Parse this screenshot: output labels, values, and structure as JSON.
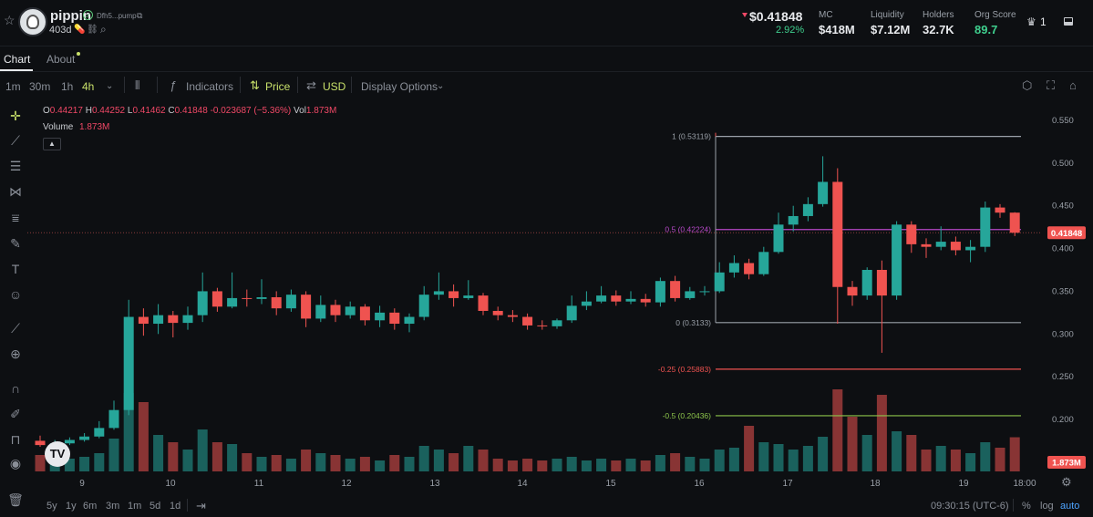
{
  "header": {
    "token_name": "pippin",
    "address": "Dfh5...pump",
    "age": "403d",
    "price": "$0.41848",
    "price_change": "2.92%",
    "stats": [
      {
        "label": "MC",
        "value": "$418M",
        "color": "#e8eaed"
      },
      {
        "label": "Liquidity",
        "value": "$7.12M",
        "color": "#e8eaed"
      },
      {
        "label": "Holders",
        "value": "32.7K",
        "color": "#e8eaed"
      },
      {
        "label": "Org Score",
        "value": "89.7",
        "color": "#3fcf8e"
      }
    ],
    "crown_count": "1"
  },
  "tabs": {
    "chart": "Chart",
    "about": "About"
  },
  "toolbar": {
    "intervals": [
      "1m",
      "30m",
      "1h",
      "4h"
    ],
    "active_interval": "4h",
    "indicators": "Indicators",
    "price": "Price",
    "usd": "USD",
    "display_options": "Display Options"
  },
  "legend": {
    "o_label": "O",
    "o_val": "0.44217",
    "h_label": "H",
    "h_val": "0.44252",
    "l_label": "L",
    "l_val": "0.41462",
    "c_label": "C",
    "c_val": "0.41848",
    "change": "-0.023687 (−5.36%)",
    "vol_label": "Vol",
    "vol_val": "1.873M",
    "volume_label": "Volume",
    "volume_val": "1.873M"
  },
  "footer": {
    "ranges": [
      "5y",
      "1y",
      "6m",
      "3m",
      "1m",
      "5d",
      "1d"
    ],
    "time": "09:30:15 (UTC-6)",
    "percent": "%",
    "log": "log",
    "auto": "auto"
  },
  "colors": {
    "up": "#26a69a",
    "down": "#ef5350",
    "accent": "#c8e06a",
    "fib_mid": "#b548c6"
  },
  "chart_data": {
    "type": "candlestick",
    "title": "",
    "y_ticks": [
      "0.550",
      "0.500",
      "0.450",
      "0.400",
      "0.350",
      "0.300",
      "0.250",
      "0.200"
    ],
    "ylim": [
      0.16,
      0.56
    ],
    "x_ticks": [
      "9",
      "10",
      "11",
      "12",
      "13",
      "14",
      "15",
      "16",
      "17",
      "18",
      "19",
      "18:00"
    ],
    "last_price_label": "0.41848",
    "last_volume_label": "1.873M",
    "fib_levels": [
      {
        "label": "1 (0.53119)",
        "value": 0.53119,
        "color": "#9aa0a8"
      },
      {
        "label": "0.5 (0.42224)",
        "value": 0.42224,
        "color": "#b548c6"
      },
      {
        "label": "0 (0.3133)",
        "value": 0.3133,
        "color": "#9aa0a8"
      },
      {
        "label": "-0.25 (0.25883)",
        "value": 0.25883,
        "color": "#ef5350"
      },
      {
        "label": "-0.5 (0.20436)",
        "value": 0.20436,
        "color": "#8bc34a"
      }
    ],
    "candles": [
      [
        0.175,
        0.17,
        0.181,
        0.168,
        0.9
      ],
      [
        0.17,
        0.172,
        0.176,
        0.167,
        0.6
      ],
      [
        0.172,
        0.176,
        0.179,
        0.17,
        0.7
      ],
      [
        0.176,
        0.18,
        0.184,
        0.174,
        0.8
      ],
      [
        0.18,
        0.19,
        0.198,
        0.178,
        1.0
      ],
      [
        0.19,
        0.211,
        0.222,
        0.188,
        1.8
      ],
      [
        0.211,
        0.32,
        0.34,
        0.205,
        4.3
      ],
      [
        0.32,
        0.312,
        0.33,
        0.298,
        3.8
      ],
      [
        0.312,
        0.322,
        0.335,
        0.3,
        2.0
      ],
      [
        0.322,
        0.313,
        0.327,
        0.296,
        1.6
      ],
      [
        0.313,
        0.322,
        0.332,
        0.305,
        1.2
      ],
      [
        0.322,
        0.35,
        0.372,
        0.314,
        2.3
      ],
      [
        0.35,
        0.332,
        0.354,
        0.326,
        1.6
      ],
      [
        0.332,
        0.342,
        0.372,
        0.33,
        1.5
      ],
      [
        0.342,
        0.341,
        0.352,
        0.332,
        1.0
      ],
      [
        0.341,
        0.343,
        0.364,
        0.335,
        0.8
      ],
      [
        0.343,
        0.33,
        0.35,
        0.322,
        0.9
      ],
      [
        0.33,
        0.346,
        0.352,
        0.326,
        0.7
      ],
      [
        0.346,
        0.318,
        0.35,
        0.308,
        1.2
      ],
      [
        0.318,
        0.334,
        0.345,
        0.314,
        1.0
      ],
      [
        0.334,
        0.322,
        0.34,
        0.314,
        0.9
      ],
      [
        0.322,
        0.332,
        0.338,
        0.318,
        0.7
      ],
      [
        0.332,
        0.316,
        0.335,
        0.31,
        0.8
      ],
      [
        0.316,
        0.325,
        0.333,
        0.308,
        0.6
      ],
      [
        0.325,
        0.312,
        0.33,
        0.305,
        0.9
      ],
      [
        0.312,
        0.32,
        0.324,
        0.302,
        0.8
      ],
      [
        0.32,
        0.346,
        0.356,
        0.316,
        1.4
      ],
      [
        0.346,
        0.35,
        0.372,
        0.34,
        1.2
      ],
      [
        0.35,
        0.342,
        0.358,
        0.332,
        1.0
      ],
      [
        0.342,
        0.345,
        0.363,
        0.34,
        1.4
      ],
      [
        0.345,
        0.327,
        0.348,
        0.322,
        1.2
      ],
      [
        0.327,
        0.322,
        0.332,
        0.316,
        0.7
      ],
      [
        0.322,
        0.32,
        0.328,
        0.314,
        0.6
      ],
      [
        0.32,
        0.31,
        0.324,
        0.305,
        0.7
      ],
      [
        0.31,
        0.309,
        0.316,
        0.305,
        0.6
      ],
      [
        0.309,
        0.316,
        0.318,
        0.306,
        0.7
      ],
      [
        0.316,
        0.333,
        0.345,
        0.313,
        0.8
      ],
      [
        0.333,
        0.338,
        0.35,
        0.328,
        0.6
      ],
      [
        0.338,
        0.345,
        0.356,
        0.336,
        0.7
      ],
      [
        0.345,
        0.338,
        0.351,
        0.333,
        0.6
      ],
      [
        0.338,
        0.341,
        0.35,
        0.335,
        0.7
      ],
      [
        0.341,
        0.337,
        0.347,
        0.332,
        0.6
      ],
      [
        0.337,
        0.362,
        0.366,
        0.332,
        0.9
      ],
      [
        0.362,
        0.342,
        0.368,
        0.338,
        1.0
      ],
      [
        0.342,
        0.35,
        0.355,
        0.34,
        0.8
      ],
      [
        0.35,
        0.35,
        0.356,
        0.345,
        0.7
      ],
      [
        0.35,
        0.372,
        0.384,
        0.348,
        1.2
      ],
      [
        0.372,
        0.383,
        0.392,
        0.366,
        1.3
      ],
      [
        0.383,
        0.37,
        0.388,
        0.364,
        2.5
      ],
      [
        0.37,
        0.396,
        0.402,
        0.368,
        1.6
      ],
      [
        0.396,
        0.428,
        0.442,
        0.394,
        1.5
      ],
      [
        0.428,
        0.438,
        0.45,
        0.42,
        1.2
      ],
      [
        0.438,
        0.452,
        0.46,
        0.432,
        1.4
      ],
      [
        0.452,
        0.478,
        0.508,
        0.449,
        1.9
      ],
      [
        0.478,
        0.355,
        0.494,
        0.312,
        4.5
      ],
      [
        0.355,
        0.345,
        0.362,
        0.333,
        3.0
      ],
      [
        0.345,
        0.375,
        0.378,
        0.34,
        2.0
      ],
      [
        0.375,
        0.345,
        0.386,
        0.278,
        4.2
      ],
      [
        0.345,
        0.428,
        0.432,
        0.34,
        2.2
      ],
      [
        0.428,
        0.405,
        0.432,
        0.395,
        2.0
      ],
      [
        0.405,
        0.402,
        0.412,
        0.389,
        1.2
      ],
      [
        0.402,
        0.408,
        0.426,
        0.398,
        1.4
      ],
      [
        0.408,
        0.398,
        0.414,
        0.392,
        1.2
      ],
      [
        0.398,
        0.402,
        0.41,
        0.384,
        1.0
      ],
      [
        0.402,
        0.448,
        0.455,
        0.396,
        1.6
      ],
      [
        0.448,
        0.442,
        0.452,
        0.436,
        1.3
      ],
      [
        0.442,
        0.41848,
        0.44252,
        0.41462,
        1.873
      ]
    ]
  }
}
